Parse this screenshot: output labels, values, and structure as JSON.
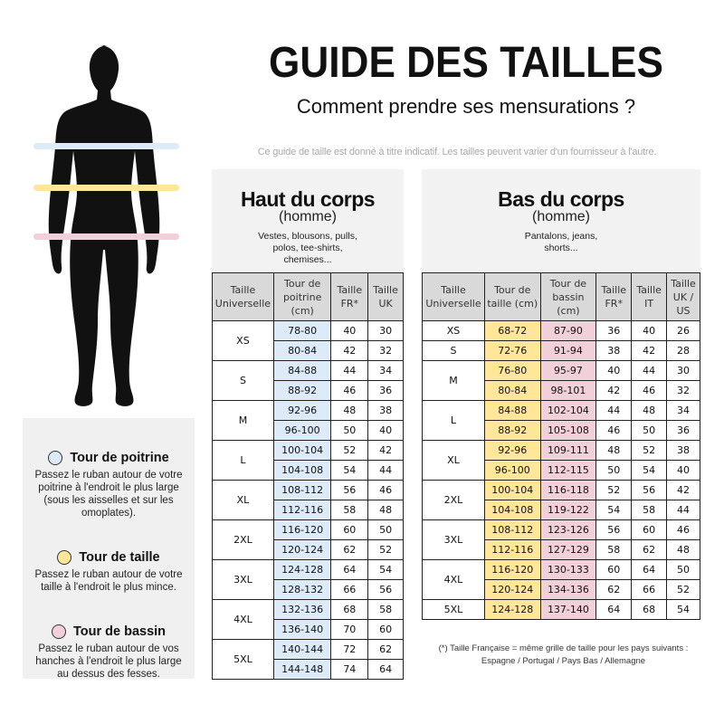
{
  "title": "GUIDE DES TAILLES",
  "subtitle": "Comment prendre ses mensurations ?",
  "note": "Ce guide de taille est donné à titre indicatif. Les tailles peuvent varier d'un fournisseur à l'autre.",
  "colors": {
    "poitrine": "#dcebf7",
    "taille": "#ffe699",
    "bassin": "#f2d0da",
    "header": "#d9d9d9"
  },
  "top": {
    "title": "Haut du corps",
    "gender": "(homme)",
    "desc": "Vestes, blousons, pulls, polos, tee-shirts, chemises...",
    "headers": [
      "Taille Universelle",
      "Tour de poitrine (cm)",
      "Taille FR*",
      "Taille UK"
    ],
    "groups": [
      {
        "size": "XS",
        "rows": [
          [
            "78-80",
            "40",
            "30"
          ],
          [
            "80-84",
            "42",
            "32"
          ]
        ]
      },
      {
        "size": "S",
        "rows": [
          [
            "84-88",
            "44",
            "34"
          ],
          [
            "88-92",
            "46",
            "36"
          ]
        ]
      },
      {
        "size": "M",
        "rows": [
          [
            "92-96",
            "48",
            "38"
          ],
          [
            "96-100",
            "50",
            "40"
          ]
        ]
      },
      {
        "size": "L",
        "rows": [
          [
            "100-104",
            "52",
            "42"
          ],
          [
            "104-108",
            "54",
            "44"
          ]
        ]
      },
      {
        "size": "XL",
        "rows": [
          [
            "108-112",
            "56",
            "46"
          ],
          [
            "112-116",
            "58",
            "48"
          ]
        ]
      },
      {
        "size": "2XL",
        "rows": [
          [
            "116-120",
            "60",
            "50"
          ],
          [
            "120-124",
            "62",
            "52"
          ]
        ]
      },
      {
        "size": "3XL",
        "rows": [
          [
            "124-128",
            "64",
            "54"
          ],
          [
            "128-132",
            "66",
            "56"
          ]
        ]
      },
      {
        "size": "4XL",
        "rows": [
          [
            "132-136",
            "68",
            "58"
          ],
          [
            "136-140",
            "70",
            "60"
          ]
        ]
      },
      {
        "size": "5XL",
        "rows": [
          [
            "140-144",
            "72",
            "62"
          ],
          [
            "144-148",
            "74",
            "64"
          ]
        ]
      }
    ]
  },
  "bottom": {
    "title": "Bas du corps",
    "gender": "(homme)",
    "desc": "Pantalons, jeans, shorts...",
    "headers": [
      "Taille Universelle",
      "Tour de taille (cm)",
      "Tour de bassin (cm)",
      "Taille FR*",
      "Taille IT",
      "Taille UK / US"
    ],
    "groups": [
      {
        "size": "XS",
        "rows": [
          [
            "68-72",
            "87-90",
            "36",
            "40",
            "26"
          ]
        ]
      },
      {
        "size": "S",
        "rows": [
          [
            "72-76",
            "91-94",
            "38",
            "42",
            "28"
          ]
        ]
      },
      {
        "size": "M",
        "rows": [
          [
            "76-80",
            "95-97",
            "40",
            "44",
            "30"
          ],
          [
            "80-84",
            "98-101",
            "42",
            "46",
            "32"
          ]
        ]
      },
      {
        "size": "L",
        "rows": [
          [
            "84-88",
            "102-104",
            "44",
            "48",
            "34"
          ],
          [
            "88-92",
            "105-108",
            "46",
            "50",
            "36"
          ]
        ]
      },
      {
        "size": "XL",
        "rows": [
          [
            "92-96",
            "109-111",
            "48",
            "52",
            "38"
          ],
          [
            "96-100",
            "112-115",
            "50",
            "54",
            "40"
          ]
        ]
      },
      {
        "size": "2XL",
        "rows": [
          [
            "100-104",
            "116-118",
            "52",
            "56",
            "42"
          ],
          [
            "104-108",
            "119-122",
            "54",
            "58",
            "44"
          ]
        ]
      },
      {
        "size": "3XL",
        "rows": [
          [
            "108-112",
            "123-126",
            "56",
            "60",
            "46"
          ],
          [
            "112-116",
            "127-129",
            "58",
            "62",
            "48"
          ]
        ]
      },
      {
        "size": "4XL",
        "rows": [
          [
            "116-120",
            "130-133",
            "60",
            "64",
            "50"
          ],
          [
            "120-124",
            "134-136",
            "62",
            "66",
            "52"
          ]
        ]
      },
      {
        "size": "5XL",
        "rows": [
          [
            "124-128",
            "137-140",
            "64",
            "68",
            "54"
          ]
        ]
      }
    ]
  },
  "legend": [
    {
      "label": "Tour de poitrine",
      "text": "Passez le ruban autour de votre poitrine à l'endroit le plus large (sous les aisselles et sur les omoplates).",
      "color": "#dcebf7"
    },
    {
      "label": "Tour de taille",
      "text": "Passez le ruban autour de votre taille à l'endroit le plus mince.",
      "color": "#ffe699"
    },
    {
      "label": "Tour de bassin",
      "text": "Passez le ruban autour de vos hanches à l'endroit le plus large au dessus des fesses.",
      "color": "#f2d0da"
    }
  ],
  "footnote": [
    "(*) Taille Française = même grille de taille pour les pays suivants :",
    "Espagne / Portugal / Pays Bas / Allemagne"
  ]
}
